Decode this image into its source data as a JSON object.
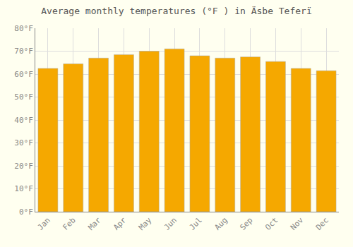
{
  "chart_data": {
    "type": "bar",
    "title": "Average monthly temperatures (°F ) in Äsbe Teferï",
    "categories": [
      "Jan",
      "Feb",
      "Mar",
      "Apr",
      "May",
      "Jun",
      "Jul",
      "Aug",
      "Sep",
      "Oct",
      "Nov",
      "Dec"
    ],
    "values": [
      62.5,
      64.5,
      67.0,
      68.5,
      70.0,
      71.0,
      68.0,
      67.0,
      67.5,
      65.5,
      62.5,
      61.5
    ],
    "color": "#F5A800",
    "ylim": [
      0,
      80
    ],
    "yticks": [
      {
        "value": 0,
        "label": "0°F"
      },
      {
        "value": 10,
        "label": "10°F"
      },
      {
        "value": 20,
        "label": "20°F"
      },
      {
        "value": 30,
        "label": "30°F"
      },
      {
        "value": 40,
        "label": "40°F"
      },
      {
        "value": 50,
        "label": "50°F"
      },
      {
        "value": 60,
        "label": "60°F"
      },
      {
        "value": 70,
        "label": "70°F"
      },
      {
        "value": 80,
        "label": "80°F"
      }
    ],
    "grid": true
  }
}
